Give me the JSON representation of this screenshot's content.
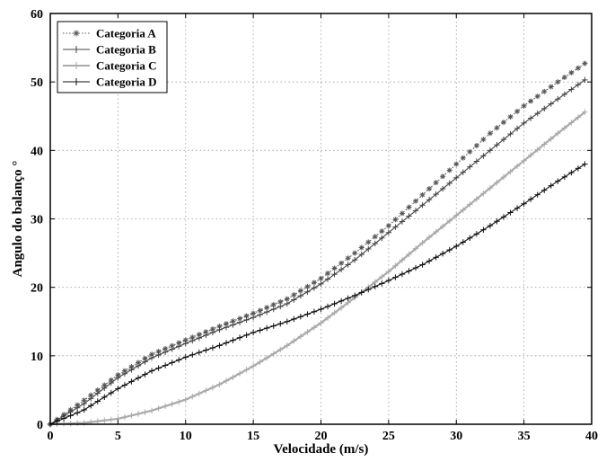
{
  "chart_data": {
    "type": "line",
    "xlabel": "Velocidade (m/s)",
    "ylabel": "Angulo do balanço °",
    "xlim": [
      0,
      40
    ],
    "ylim": [
      0,
      60
    ],
    "xticks": [
      "0",
      "5",
      "10",
      "15",
      "20",
      "25",
      "30",
      "35",
      "40"
    ],
    "yticks": [
      "0",
      "10",
      "20",
      "30",
      "40",
      "50",
      "60"
    ],
    "grid": true,
    "legend_position": "top-left",
    "x": [
      0,
      2.5,
      5,
      7.5,
      10,
      12.5,
      15,
      17.5,
      20,
      22.5,
      25,
      27.5,
      30,
      32.5,
      35,
      37.5,
      39.5
    ],
    "series": [
      {
        "name": "Categoria A",
        "color": "#555555",
        "marker": "star",
        "line": "dotted",
        "values": [
          0,
          3.5,
          7.2,
          10.2,
          12.3,
          14.3,
          16.2,
          18.3,
          21.3,
          25.0,
          29.0,
          33.5,
          38.0,
          42.5,
          46.5,
          50.0,
          52.7
        ]
      },
      {
        "name": "Categoria B",
        "color": "#444444",
        "marker": "plus",
        "line": "solid",
        "values": [
          0,
          3.0,
          6.8,
          9.7,
          11.8,
          13.8,
          15.6,
          17.6,
          20.5,
          24.0,
          28.0,
          32.0,
          36.0,
          40.0,
          44.0,
          47.5,
          50.3
        ]
      },
      {
        "name": "Categoria C",
        "color": "#aaaaaa",
        "marker": "plus",
        "line": "solid",
        "values": [
          0,
          0.2,
          0.8,
          2.0,
          3.6,
          5.8,
          8.5,
          11.5,
          14.8,
          18.5,
          22.3,
          26.5,
          30.5,
          34.5,
          38.5,
          42.5,
          45.6
        ]
      },
      {
        "name": "Categoria D",
        "color": "#111111",
        "marker": "plus",
        "line": "solid",
        "values": [
          0,
          2.1,
          5.2,
          7.8,
          9.8,
          11.5,
          13.4,
          15.0,
          16.8,
          18.8,
          21.0,
          23.3,
          26.0,
          29.0,
          32.2,
          35.5,
          38.0
        ]
      }
    ]
  }
}
